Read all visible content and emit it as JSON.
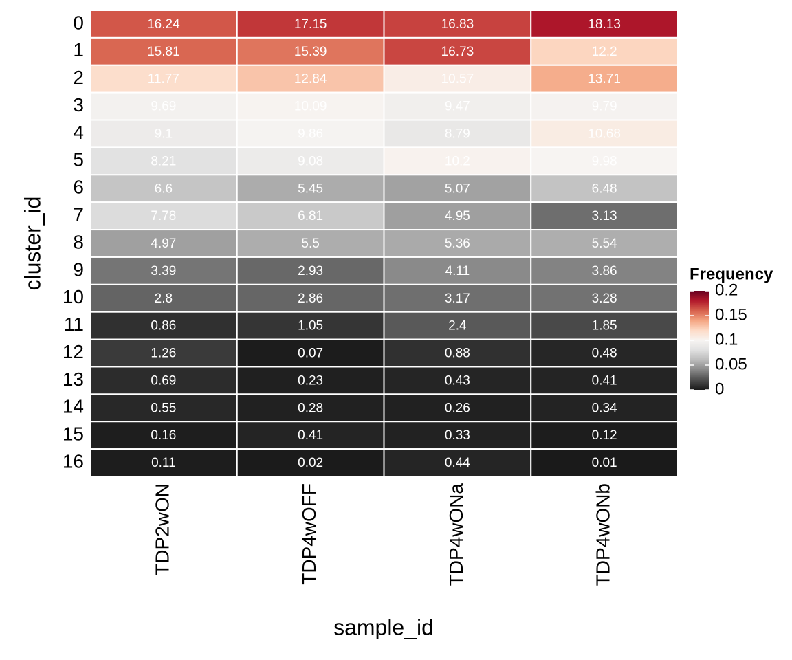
{
  "chart_data": {
    "type": "heatmap",
    "x_label": "sample_id",
    "y_label": "cluster_id",
    "x": [
      "TDP2wON",
      "TDP4wOFF",
      "TDP4wONa",
      "TDP4wONb"
    ],
    "categories": [
      "0",
      "1",
      "2",
      "3",
      "4",
      "5",
      "6",
      "7",
      "8",
      "9",
      "10",
      "11",
      "12",
      "13",
      "14",
      "15",
      "16"
    ],
    "values": [
      [
        0.1624,
        0.1715,
        0.1683,
        0.1813
      ],
      [
        0.1581,
        0.1539,
        0.1673,
        0.122
      ],
      [
        0.1177,
        0.1284,
        0.1057,
        0.1371
      ],
      [
        0.0969,
        0.1009,
        0.0947,
        0.0979
      ],
      [
        0.091,
        0.0986,
        0.0879,
        0.1068
      ],
      [
        0.0821,
        0.0908,
        0.102,
        0.0998
      ],
      [
        0.066,
        0.0545,
        0.0507,
        0.0648
      ],
      [
        0.0778,
        0.0681,
        0.0495,
        0.0313
      ],
      [
        0.0497,
        0.055,
        0.0536,
        0.0554
      ],
      [
        0.0339,
        0.0293,
        0.0411,
        0.0386
      ],
      [
        0.028,
        0.0286,
        0.0317,
        0.0328
      ],
      [
        0.0086,
        0.0105,
        0.024,
        0.0185
      ],
      [
        0.0126,
        0.0007,
        0.0088,
        0.0048
      ],
      [
        0.0069,
        0.0023,
        0.0043,
        0.0041
      ],
      [
        0.0055,
        0.0028,
        0.0026,
        0.0034
      ],
      [
        0.0016,
        0.0041,
        0.0033,
        0.0012
      ],
      [
        0.0011,
        0.0002,
        0.0044,
        0.0001
      ]
    ],
    "value_labels": [
      [
        "16.24",
        "17.15",
        "16.83",
        "18.13"
      ],
      [
        "15.81",
        "15.39",
        "16.73",
        "12.2"
      ],
      [
        "11.77",
        "12.84",
        "10.57",
        "13.71"
      ],
      [
        "9.69",
        "10.09",
        "9.47",
        "9.79"
      ],
      [
        "9.1",
        "9.86",
        "8.79",
        "10.68"
      ],
      [
        "8.21",
        "9.08",
        "10.2",
        "9.98"
      ],
      [
        "6.6",
        "5.45",
        "5.07",
        "6.48"
      ],
      [
        "7.78",
        "6.81",
        "4.95",
        "3.13"
      ],
      [
        "4.97",
        "5.5",
        "5.36",
        "5.54"
      ],
      [
        "3.39",
        "2.93",
        "4.11",
        "3.86"
      ],
      [
        "2.8",
        "2.86",
        "3.17",
        "3.28"
      ],
      [
        "0.86",
        "1.05",
        "2.4",
        "1.85"
      ],
      [
        "1.26",
        "0.07",
        "0.88",
        "0.48"
      ],
      [
        "0.69",
        "0.23",
        "0.43",
        "0.41"
      ],
      [
        "0.55",
        "0.28",
        "0.26",
        "0.34"
      ],
      [
        "0.16",
        "0.41",
        "0.33",
        "0.12"
      ],
      [
        "0.11",
        "0.02",
        "0.44",
        "0.01"
      ]
    ],
    "legend_title": "Frequency",
    "clim": [
      0,
      0.2
    ],
    "cticks": [
      0,
      0.05,
      0.1,
      0.15,
      0.2
    ],
    "colors": [
      "#1a1a1a",
      "#4d4d4d",
      "#878787",
      "#bababa",
      "#e0e0e0",
      "#f7f4f2",
      "#fddbc7",
      "#f4a582",
      "#d6604d",
      "#b2182b",
      "#67001f"
    ],
    "legend_position": "right"
  }
}
